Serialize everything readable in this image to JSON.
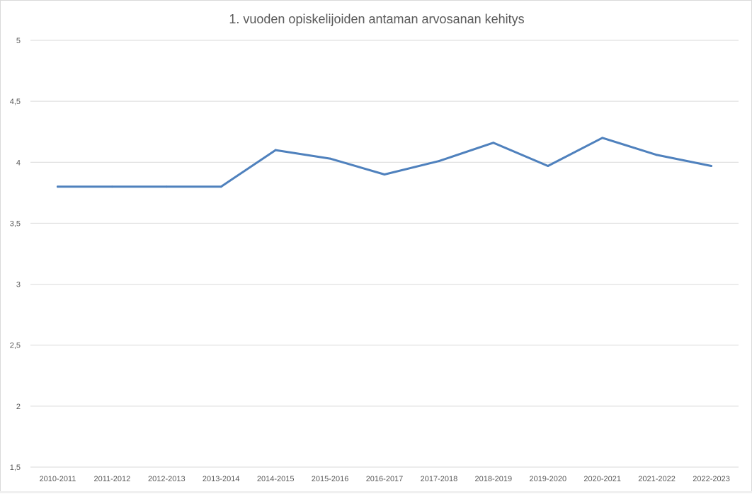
{
  "chart_data": {
    "type": "line",
    "title": "1. vuoden opiskelijoiden antaman arvosanan kehitys",
    "xlabel": "",
    "ylabel": "",
    "categories": [
      "2010-2011",
      "2011-2012",
      "2012-2013",
      "2013-2014",
      "2014-2015",
      "2015-2016",
      "2016-2017",
      "2017-2018",
      "2018-2019",
      "2019-2020",
      "2020-2021",
      "2021-2022",
      "2022-2023"
    ],
    "series": [
      {
        "values": [
          3.8,
          3.8,
          3.8,
          3.8,
          4.1,
          4.03,
          3.9,
          4.01,
          4.16,
          3.97,
          4.2,
          4.06,
          3.97
        ]
      }
    ],
    "ylim": [
      1.5,
      5
    ],
    "yticks": [
      1.5,
      2,
      2.5,
      3,
      3.5,
      4,
      4.5,
      5
    ],
    "ytick_labels": [
      "1,5",
      "2",
      "2,5",
      "3",
      "3,5",
      "4",
      "4,5",
      "5"
    ],
    "grid": true,
    "legend": "none",
    "colors": {
      "series": "#4f81bd",
      "grid": "#d9d9d9",
      "text": "#595959"
    }
  }
}
